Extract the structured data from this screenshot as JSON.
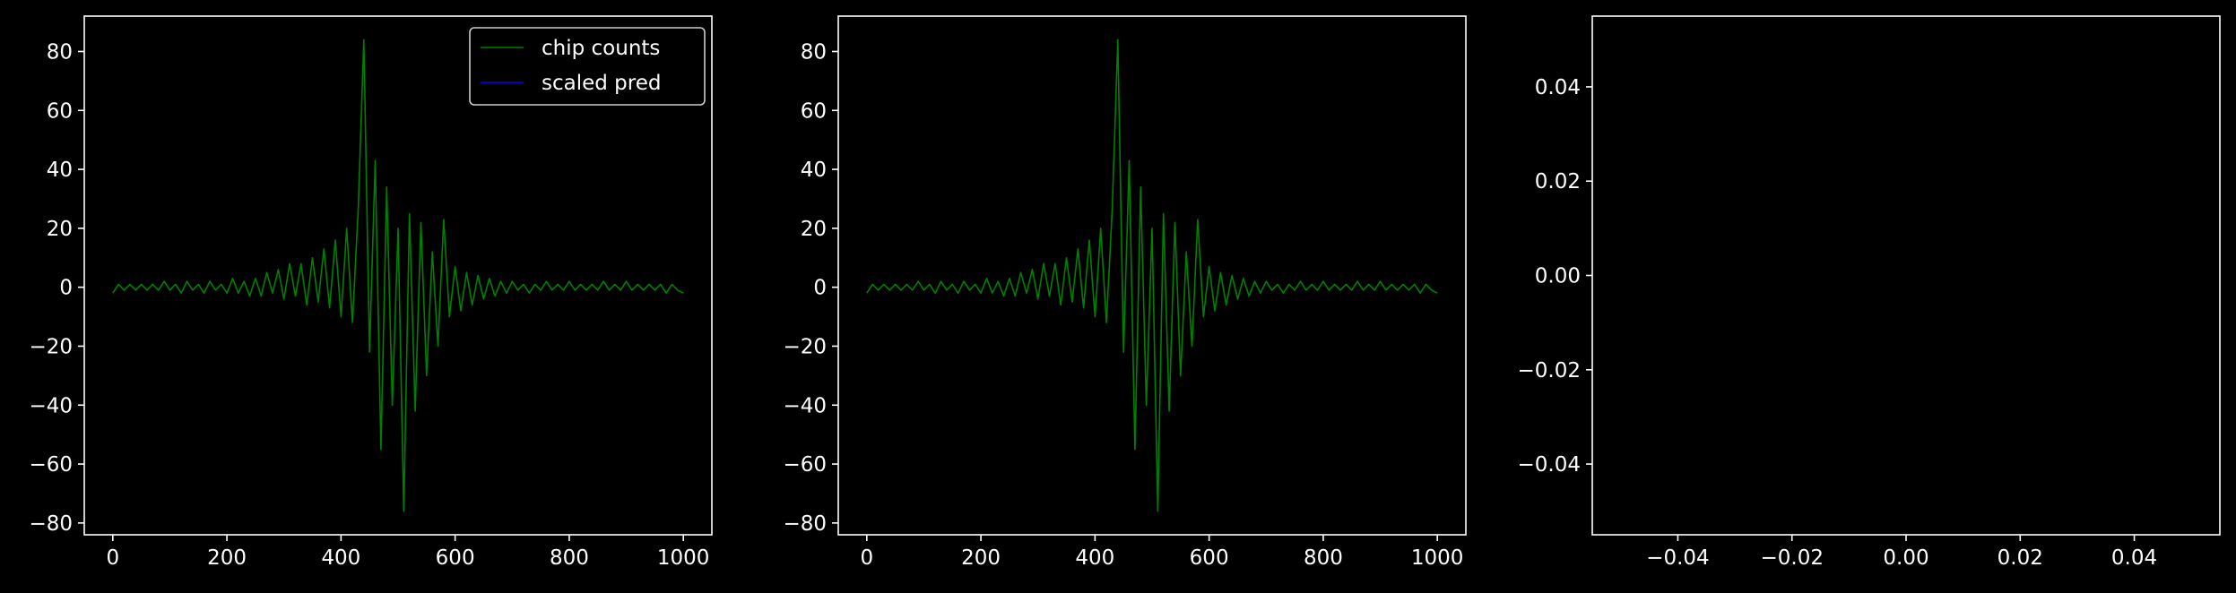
{
  "figure": {
    "background": "#000000",
    "foreground": "#ffffff"
  },
  "chart_data": [
    {
      "type": "line",
      "title": "",
      "xlabel": "",
      "ylabel": "",
      "xlim": [
        -50,
        1050
      ],
      "ylim": [
        -84,
        92
      ],
      "xticks": [
        0,
        200,
        400,
        600,
        800,
        1000
      ],
      "xtick_labels": [
        "0",
        "200",
        "400",
        "600",
        "800",
        "1000"
      ],
      "yticks": [
        -80,
        -60,
        -40,
        -20,
        0,
        20,
        40,
        60,
        80
      ],
      "ytick_labels": [
        "−80",
        "−60",
        "−40",
        "−20",
        "0",
        "20",
        "40",
        "60",
        "80"
      ],
      "grid": false,
      "legend": {
        "location": "upper right",
        "entries": [
          {
            "label": "chip counts",
            "color": "#008000"
          },
          {
            "label": "scaled pred",
            "color": "#0000ff"
          }
        ]
      },
      "series": [
        {
          "name": "chip counts",
          "color": "#008000",
          "sampled_every": 10,
          "x": [
            0,
            10,
            20,
            30,
            40,
            50,
            60,
            70,
            80,
            90,
            100,
            110,
            120,
            130,
            140,
            150,
            160,
            170,
            180,
            190,
            200,
            210,
            220,
            230,
            240,
            250,
            260,
            270,
            280,
            290,
            300,
            310,
            320,
            330,
            340,
            350,
            360,
            370,
            380,
            390,
            400,
            410,
            420,
            430,
            440,
            450,
            460,
            470,
            480,
            490,
            500,
            510,
            520,
            530,
            540,
            550,
            560,
            570,
            580,
            590,
            600,
            610,
            620,
            630,
            640,
            650,
            660,
            670,
            680,
            690,
            700,
            710,
            720,
            730,
            740,
            750,
            760,
            770,
            780,
            790,
            800,
            810,
            820,
            830,
            840,
            850,
            860,
            870,
            880,
            890,
            900,
            910,
            920,
            930,
            940,
            950,
            960,
            970,
            980,
            990,
            1000
          ],
          "values": [
            -2,
            1,
            -1,
            1,
            -1,
            1,
            -1,
            1,
            -1,
            2,
            -1,
            1,
            -2,
            2,
            -1,
            1,
            -2,
            2,
            -1,
            1,
            -2,
            3,
            -2,
            2,
            -3,
            3,
            -3,
            5,
            -2,
            6,
            -4,
            8,
            -3,
            8,
            -6,
            10,
            -5,
            13,
            -7,
            16,
            -10,
            20,
            -12,
            26,
            84,
            -22,
            43,
            -55,
            34,
            -40,
            20,
            -76,
            25,
            -42,
            22,
            -30,
            12,
            -20,
            23,
            -10,
            7,
            -8,
            5,
            -6,
            4,
            -4,
            3,
            -3,
            2,
            -2,
            2,
            -1,
            1,
            -2,
            1,
            -1,
            2,
            -1,
            1,
            -1,
            2,
            -1,
            1,
            -1,
            1,
            -1,
            2,
            -1,
            1,
            -1,
            2,
            -1,
            1,
            -1,
            1,
            -1,
            1,
            -2,
            1,
            -1,
            -2
          ]
        },
        {
          "name": "scaled pred",
          "color": "#0000ff",
          "x": [],
          "values": []
        }
      ]
    },
    {
      "type": "line",
      "title": "",
      "xlabel": "",
      "ylabel": "",
      "xlim": [
        -50,
        1050
      ],
      "ylim": [
        -84,
        92
      ],
      "xticks": [
        0,
        200,
        400,
        600,
        800,
        1000
      ],
      "xtick_labels": [
        "0",
        "200",
        "400",
        "600",
        "800",
        "1000"
      ],
      "yticks": [
        -80,
        -60,
        -40,
        -20,
        0,
        20,
        40,
        60,
        80
      ],
      "ytick_labels": [
        "−80",
        "−60",
        "−40",
        "−20",
        "0",
        "20",
        "40",
        "60",
        "80"
      ],
      "grid": false,
      "series": [
        {
          "color": "#008000",
          "sampled_every": 10,
          "x": [
            0,
            10,
            20,
            30,
            40,
            50,
            60,
            70,
            80,
            90,
            100,
            110,
            120,
            130,
            140,
            150,
            160,
            170,
            180,
            190,
            200,
            210,
            220,
            230,
            240,
            250,
            260,
            270,
            280,
            290,
            300,
            310,
            320,
            330,
            340,
            350,
            360,
            370,
            380,
            390,
            400,
            410,
            420,
            430,
            440,
            450,
            460,
            470,
            480,
            490,
            500,
            510,
            520,
            530,
            540,
            550,
            560,
            570,
            580,
            590,
            600,
            610,
            620,
            630,
            640,
            650,
            660,
            670,
            680,
            690,
            700,
            710,
            720,
            730,
            740,
            750,
            760,
            770,
            780,
            790,
            800,
            810,
            820,
            830,
            840,
            850,
            860,
            870,
            880,
            890,
            900,
            910,
            920,
            930,
            940,
            950,
            960,
            970,
            980,
            990,
            1000
          ],
          "values": [
            -2,
            1,
            -1,
            1,
            -1,
            1,
            -1,
            1,
            -1,
            2,
            -1,
            1,
            -2,
            2,
            -1,
            1,
            -2,
            2,
            -1,
            1,
            -2,
            3,
            -2,
            2,
            -3,
            3,
            -3,
            5,
            -2,
            6,
            -4,
            8,
            -3,
            8,
            -6,
            10,
            -5,
            13,
            -7,
            16,
            -10,
            20,
            -12,
            26,
            84,
            -22,
            43,
            -55,
            34,
            -40,
            20,
            -76,
            25,
            -42,
            22,
            -30,
            12,
            -20,
            23,
            -10,
            7,
            -8,
            5,
            -6,
            4,
            -4,
            3,
            -3,
            2,
            -2,
            2,
            -1,
            1,
            -2,
            1,
            -1,
            2,
            -1,
            1,
            -1,
            2,
            -1,
            1,
            -1,
            1,
            -1,
            2,
            -1,
            1,
            -1,
            2,
            -1,
            1,
            -1,
            1,
            -1,
            1,
            -2,
            1,
            -1,
            -2
          ]
        }
      ]
    },
    {
      "type": "line",
      "title": "",
      "xlabel": "",
      "ylabel": "",
      "xlim": [
        -0.055,
        0.055
      ],
      "ylim": [
        -0.055,
        0.055
      ],
      "xticks": [
        -0.04,
        -0.02,
        0.0,
        0.02,
        0.04
      ],
      "xtick_labels": [
        "−0.04",
        "−0.02",
        "0.00",
        "0.02",
        "0.04"
      ],
      "yticks": [
        -0.04,
        -0.02,
        0.0,
        0.02,
        0.04
      ],
      "ytick_labels": [
        "−0.04",
        "−0.02",
        "0.00",
        "0.02",
        "0.04"
      ],
      "grid": false,
      "series": []
    }
  ]
}
